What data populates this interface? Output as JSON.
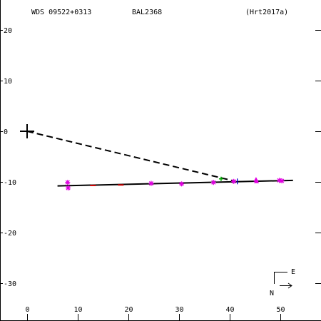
{
  "header": {
    "left": "WDS 09522+0313",
    "center": "BAL2368",
    "right": "(Hrt2017a)"
  },
  "compass": {
    "east": "E",
    "north": "N"
  },
  "chart_data": {
    "type": "scatter",
    "title": "",
    "xlabel": "",
    "ylabel": "",
    "xlim": [
      -5,
      58
    ],
    "ylim": [
      -37,
      24
    ],
    "x_ticks": [
      0,
      10,
      20,
      30,
      40,
      50
    ],
    "y_ticks": [
      20,
      10,
      0,
      -10,
      -20,
      -30
    ],
    "primary": {
      "x": 0,
      "y": 0
    },
    "orbit_line": {
      "x": [
        6,
        52.5
      ],
      "y": [
        -10.8,
        -9.7
      ]
    },
    "connector": {
      "from": [
        0,
        0
      ],
      "to": [
        41.2,
        -9.9
      ]
    },
    "series": [
      {
        "marker": "asterisk",
        "color": "#e000e0",
        "x": [
          8,
          8.1,
          24.5,
          30.5,
          36.8,
          40.8,
          49.8,
          50.3
        ],
        "y": [
          -10.1,
          -11.2,
          -10.3,
          -10.4,
          -10.1,
          -9.9,
          -9.7,
          -9.8
        ]
      },
      {
        "marker": "dash",
        "color": "#cc0000",
        "x": [
          13,
          18.5
        ],
        "y": [
          -10.7,
          -10.6
        ]
      },
      {
        "marker": "triangle",
        "color": "#e000e0",
        "x": [
          45.2,
          45.3
        ],
        "y": [
          -9.6,
          -9.9
        ]
      },
      {
        "marker": "plus",
        "color": "#00aa00",
        "x": [
          38.3
        ],
        "y": [
          -9.4
        ]
      },
      {
        "marker": "bar",
        "color": "#0000cc",
        "x": [
          41.5
        ],
        "y": [
          -9.9
        ]
      }
    ]
  }
}
